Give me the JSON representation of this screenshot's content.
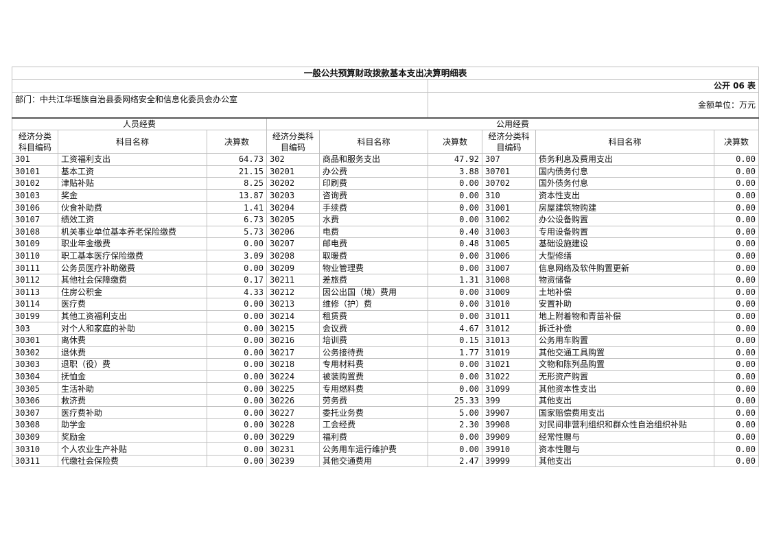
{
  "title": "一般公共预算财政拨款基本支出决算明细表",
  "table_no": "公开 06 表",
  "department": "部门：中共江华瑶族自治县委网络安全和信息化委员会办公室",
  "unit": "金额单位：万元",
  "groups": {
    "personnel": "人员经费",
    "public": "公用经费"
  },
  "headers": {
    "code": "经济分类科目编码",
    "name": "科目名称",
    "amount": "决算数"
  },
  "rows": [
    [
      "301",
      "工资福利支出",
      "64.73",
      "302",
      "商品和服务支出",
      "47.92",
      "307",
      "债务利息及费用支出",
      "0.00"
    ],
    [
      "30101",
      "基本工资",
      "21.15",
      "30201",
      "办公费",
      "3.88",
      "30701",
      "国内债务付息",
      "0.00"
    ],
    [
      "30102",
      "津贴补贴",
      "8.25",
      "30202",
      "印刷费",
      "0.00",
      "30702",
      "国外债务付息",
      "0.00"
    ],
    [
      "30103",
      "奖金",
      "13.87",
      "30203",
      "咨询费",
      "0.00",
      "310",
      "资本性支出",
      "0.00"
    ],
    [
      "30106",
      "伙食补助费",
      "1.41",
      "30204",
      "手续费",
      "0.00",
      "31001",
      "房屋建筑物购建",
      "0.00"
    ],
    [
      "30107",
      "绩效工资",
      "6.73",
      "30205",
      "水费",
      "0.00",
      "31002",
      "办公设备购置",
      "0.00"
    ],
    [
      "30108",
      "机关事业单位基本养老保险缴费",
      "5.73",
      "30206",
      "电费",
      "0.40",
      "31003",
      "专用设备购置",
      "0.00"
    ],
    [
      "30109",
      "职业年金缴费",
      "0.00",
      "30207",
      "邮电费",
      "0.48",
      "31005",
      "基础设施建设",
      "0.00"
    ],
    [
      "30110",
      "职工基本医疗保险缴费",
      "3.09",
      "30208",
      "取暖费",
      "0.00",
      "31006",
      "大型修缮",
      "0.00"
    ],
    [
      "30111",
      "公务员医疗补助缴费",
      "0.00",
      "30209",
      "物业管理费",
      "0.00",
      "31007",
      "信息网络及软件购置更新",
      "0.00"
    ],
    [
      "30112",
      "其他社会保障缴费",
      "0.17",
      "30211",
      "差旅费",
      "1.31",
      "31008",
      "物资储备",
      "0.00"
    ],
    [
      "30113",
      "住房公积金",
      "4.33",
      "30212",
      "因公出国（境）费用",
      "0.00",
      "31009",
      "土地补偿",
      "0.00"
    ],
    [
      "30114",
      "医疗费",
      "0.00",
      "30213",
      "维修（护）费",
      "0.00",
      "31010",
      "安置补助",
      "0.00"
    ],
    [
      "30199",
      "其他工资福利支出",
      "0.00",
      "30214",
      "租赁费",
      "0.00",
      "31011",
      "地上附着物和青苗补偿",
      "0.00"
    ],
    [
      "303",
      "对个人和家庭的补助",
      "0.00",
      "30215",
      "会议费",
      "4.67",
      "31012",
      "拆迁补偿",
      "0.00"
    ],
    [
      "30301",
      "离休费",
      "0.00",
      "30216",
      "培训费",
      "0.15",
      "31013",
      "公务用车购置",
      "0.00"
    ],
    [
      "30302",
      "退休费",
      "0.00",
      "30217",
      "公务接待费",
      "1.77",
      "31019",
      "其他交通工具购置",
      "0.00"
    ],
    [
      "30303",
      "退职（役）费",
      "0.00",
      "30218",
      "专用材料费",
      "0.00",
      "31021",
      "文物和陈列品购置",
      "0.00"
    ],
    [
      "30304",
      "抚恤金",
      "0.00",
      "30224",
      "被装购置费",
      "0.00",
      "31022",
      "无形资产购置",
      "0.00"
    ],
    [
      "30305",
      "生活补助",
      "0.00",
      "30225",
      "专用燃料费",
      "0.00",
      "31099",
      "其他资本性支出",
      "0.00"
    ],
    [
      "30306",
      "救济费",
      "0.00",
      "30226",
      "劳务费",
      "25.33",
      "399",
      "其他支出",
      "0.00"
    ],
    [
      "30307",
      "医疗费补助",
      "0.00",
      "30227",
      "委托业务费",
      "5.00",
      "39907",
      "国家赔偿费用支出",
      "0.00"
    ],
    [
      "30308",
      "助学金",
      "0.00",
      "30228",
      "工会经费",
      "2.30",
      "39908",
      "对民间非营利组织和群众性自治组织补贴",
      "0.00"
    ],
    [
      "30309",
      "奖励金",
      "0.00",
      "30229",
      "福利费",
      "0.00",
      "39909",
      "经常性赠与",
      "0.00"
    ],
    [
      "30310",
      "个人农业生产补贴",
      "0.00",
      "30231",
      "公务用车运行维护费",
      "0.00",
      "39910",
      "资本性赠与",
      "0.00"
    ],
    [
      "30311",
      "代缴社会保险费",
      "0.00",
      "30239",
      "其他交通费用",
      "2.47",
      "39999",
      "其他支出",
      "0.00"
    ]
  ]
}
